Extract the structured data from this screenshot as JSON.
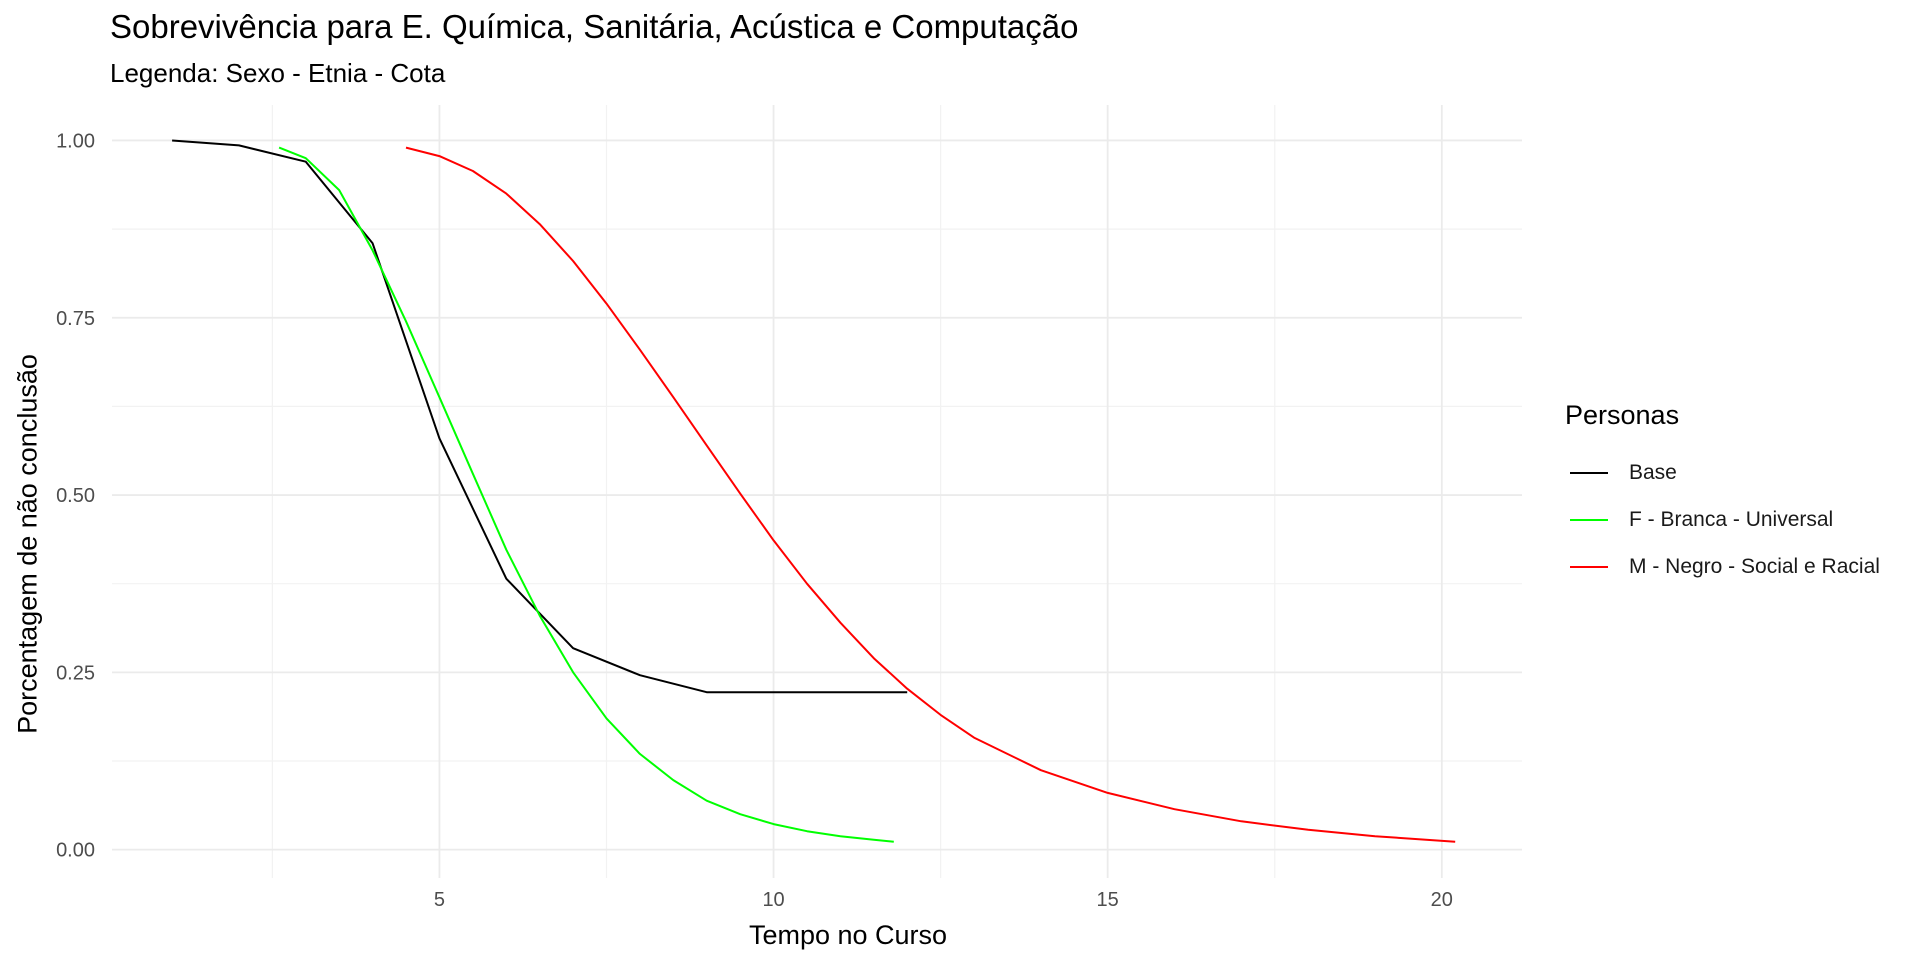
{
  "chart_data": {
    "type": "line",
    "title": "Sobrevivência para E. Química, Sanitária, Acústica e Computação",
    "subtitle": "Legenda: Sexo - Etnia - Cota",
    "xlabel": "Tempo no Curso",
    "ylabel": "Porcentagem de não conclusão",
    "xlim": [
      0.1,
      21.2
    ],
    "ylim": [
      -0.04,
      1.05
    ],
    "x_ticks": [
      5,
      10,
      15,
      20
    ],
    "x_tick_labels": [
      "5",
      "10",
      "15",
      "20"
    ],
    "y_ticks": [
      0,
      0.25,
      0.5,
      0.75,
      1
    ],
    "y_tick_labels": [
      "0.00",
      "0.25",
      "0.50",
      "0.75",
      "1.00"
    ],
    "grid": true,
    "legend_title": "Personas",
    "legend_position": "right",
    "series": [
      {
        "name": "Base",
        "color": "#000000",
        "x": [
          1,
          2,
          3,
          4,
          5,
          6,
          7,
          8,
          9,
          10,
          11,
          12
        ],
        "y": [
          1.0,
          0.993,
          0.97,
          0.855,
          0.58,
          0.382,
          0.284,
          0.246,
          0.222,
          0.222,
          0.222,
          0.222
        ]
      },
      {
        "name": "F - Branca - Universal",
        "color": "#00ff00",
        "x": [
          2.6,
          3.0,
          3.5,
          4.0,
          4.5,
          5.0,
          5.5,
          6.0,
          6.5,
          7.0,
          7.5,
          8.0,
          8.5,
          9.0,
          9.5,
          10.0,
          10.5,
          11.0,
          11.5,
          11.8
        ],
        "y": [
          0.99,
          0.975,
          0.93,
          0.845,
          0.745,
          0.638,
          0.53,
          0.423,
          0.33,
          0.25,
          0.185,
          0.135,
          0.098,
          0.069,
          0.05,
          0.036,
          0.026,
          0.019,
          0.014,
          0.011
        ]
      },
      {
        "name": "M - Negro - Social e Racial",
        "color": "#ff0000",
        "x": [
          4.5,
          5.0,
          5.5,
          6.0,
          6.5,
          7.0,
          7.5,
          8.0,
          8.5,
          9.0,
          9.5,
          10.0,
          10.5,
          11.0,
          11.5,
          12.0,
          12.5,
          13.0,
          14.0,
          15.0,
          16.0,
          17.0,
          18.0,
          19.0,
          20.2
        ],
        "y": [
          0.99,
          0.978,
          0.957,
          0.925,
          0.882,
          0.83,
          0.77,
          0.705,
          0.638,
          0.57,
          0.502,
          0.436,
          0.375,
          0.32,
          0.27,
          0.227,
          0.19,
          0.158,
          0.112,
          0.08,
          0.057,
          0.04,
          0.028,
          0.019,
          0.011
        ]
      }
    ]
  }
}
